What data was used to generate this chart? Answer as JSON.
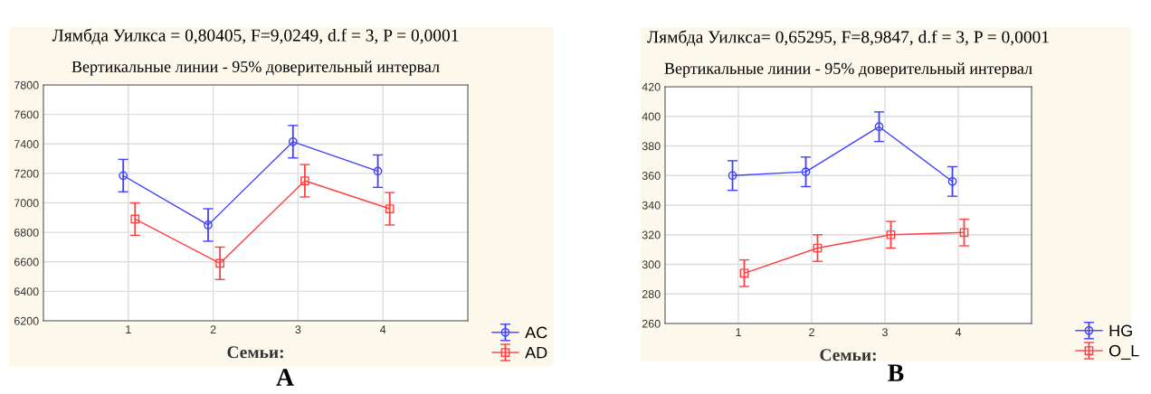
{
  "chart_data": [
    {
      "type": "line",
      "title": "Лямбда Уилкса = 0,80405, F=9,0249, d.f = 3, P = 0,0001",
      "subtitle": "Вертикальные линии - 95% доверительный интервал",
      "xlabel": "Семьи:",
      "annotations": [
        "A"
      ],
      "xlim": [
        0,
        5
      ],
      "xticks": [
        1,
        2,
        3,
        4
      ],
      "ylim": [
        6200,
        7800
      ],
      "yticks": [
        6200,
        6400,
        6600,
        6800,
        7000,
        7200,
        7400,
        7600,
        7800
      ],
      "grid": true,
      "legend": "bottom right",
      "series": [
        {
          "name": "AC",
          "color": "#4040ff",
          "marker": "circle",
          "x": [
            0.94,
            1.94,
            2.94,
            3.94
          ],
          "values": [
            7185,
            6850,
            7415,
            7215
          ],
          "errors": [
            110,
            110,
            110,
            110
          ]
        },
        {
          "name": "AD",
          "color": "#ff4040",
          "marker": "square",
          "x": [
            1.08,
            2.08,
            3.08,
            4.08
          ],
          "values": [
            6890,
            6590,
            7150,
            6960
          ],
          "errors": [
            110,
            110,
            110,
            110
          ]
        }
      ]
    },
    {
      "type": "line",
      "title": "Лямбда Уилкса= 0,65295, F=8,9847, d.f = 3, P = 0,0001",
      "subtitle": "Вертикальные линии - 95% доверительный интервал",
      "xlabel": "Семьи:",
      "annotations": [
        "B"
      ],
      "xlim": [
        0,
        5
      ],
      "xticks": [
        1,
        2,
        3,
        4
      ],
      "ylim": [
        260,
        420
      ],
      "yticks": [
        260,
        280,
        300,
        320,
        340,
        360,
        380,
        400,
        420
      ],
      "grid": true,
      "legend": "bottom right",
      "series": [
        {
          "name": "HG",
          "color": "#4040ff",
          "marker": "circle",
          "x": [
            0.92,
            1.92,
            2.92,
            3.92
          ],
          "values": [
            360,
            362.5,
            393,
            356
          ],
          "errors": [
            10,
            10,
            10,
            10
          ]
        },
        {
          "name": "O_L",
          "color": "#ff4040",
          "marker": "square",
          "x": [
            1.08,
            2.08,
            3.08,
            4.08
          ],
          "values": [
            294,
            311,
            320,
            321.5
          ],
          "errors": [
            9,
            9,
            9,
            9
          ]
        }
      ]
    }
  ]
}
